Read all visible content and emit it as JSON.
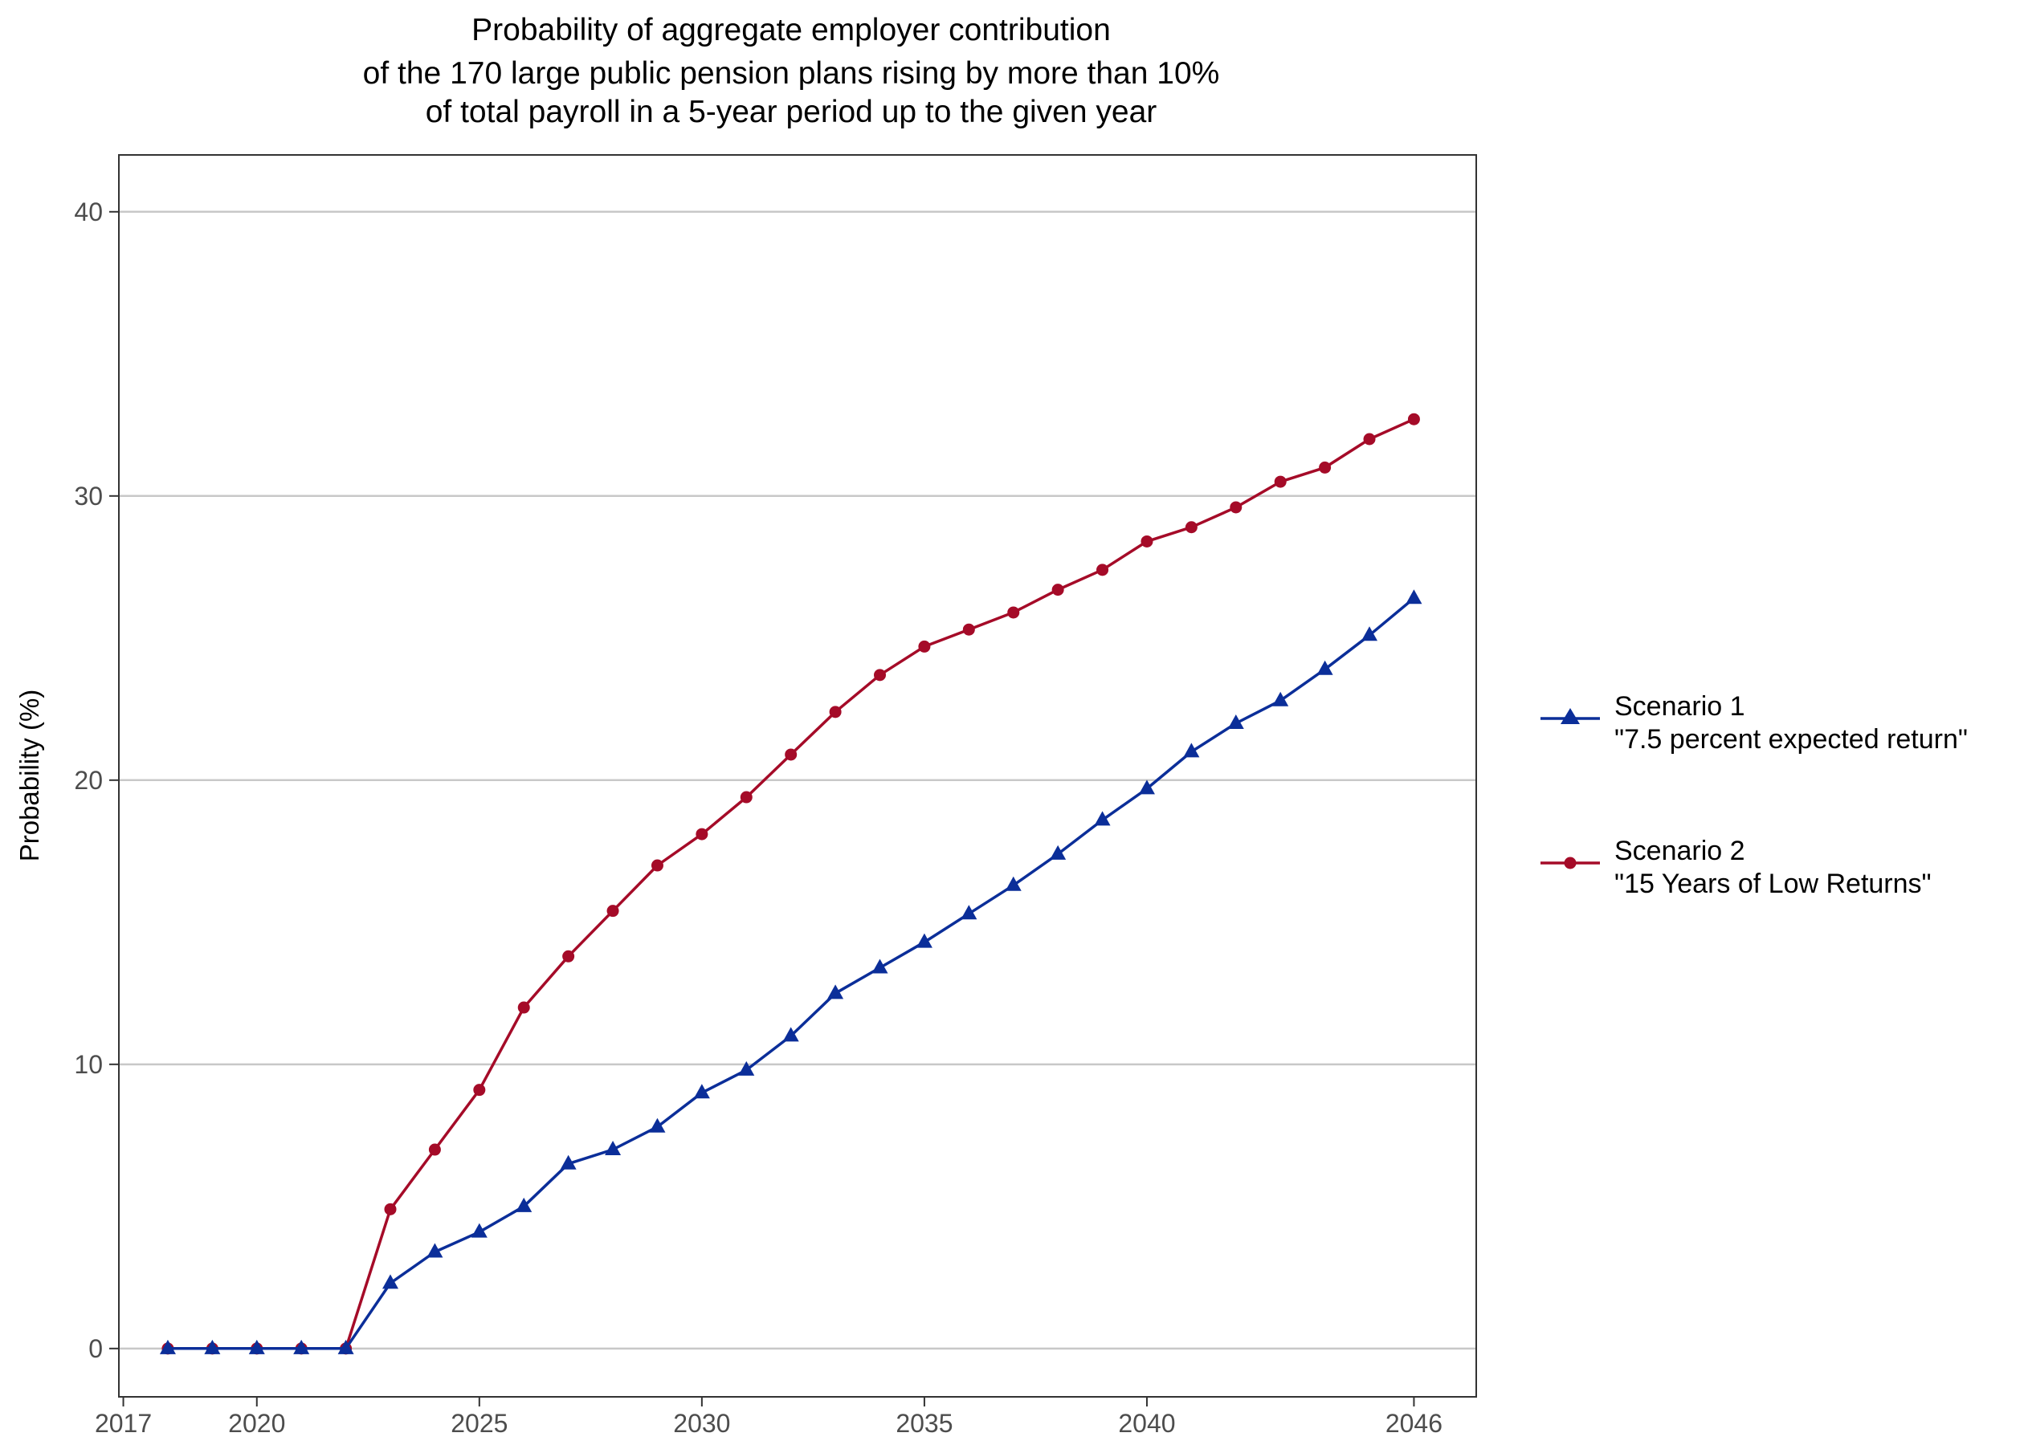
{
  "chart_data": {
    "type": "line",
    "title_lines": [
      "Probability of aggregate employer contribution",
      "of the 170 large public pension plans rising by more than 10%",
      "of total payroll in a 5-year period up to the given year"
    ],
    "xlabel": "",
    "ylabel": "Probability (%)",
    "x_ticks": [
      "2017",
      "2020",
      "2025",
      "2030",
      "2035",
      "2040",
      "2046"
    ],
    "y_ticks": [
      "0",
      "10",
      "20",
      "30",
      "40"
    ],
    "xlim": [
      2016.9,
      2047.4
    ],
    "ylim": [
      -1.7,
      42
    ],
    "grid": "horizontal major gridlines",
    "legend_position": "right",
    "x": [
      2018,
      2019,
      2020,
      2021,
      2022,
      2023,
      2024,
      2025,
      2026,
      2027,
      2028,
      2029,
      2030,
      2031,
      2032,
      2033,
      2034,
      2035,
      2036,
      2037,
      2038,
      2039,
      2040,
      2041,
      2042,
      2043,
      2044,
      2045,
      2046
    ],
    "series": [
      {
        "name_line1": "Scenario 1",
        "name_line2": "\"7.5 percent expected return\"",
        "color": "#0B2E99",
        "marker": "triangle",
        "values": [
          0,
          0,
          0,
          0,
          0,
          2.3,
          3.4,
          4.1,
          5.0,
          6.5,
          7.0,
          7.8,
          9.0,
          9.8,
          11.0,
          12.5,
          13.4,
          14.3,
          15.3,
          16.3,
          17.4,
          18.6,
          19.7,
          21.0,
          22.0,
          22.8,
          23.9,
          25.1,
          26.4
        ]
      },
      {
        "name_line1": "Scenario 2",
        "name_line2": "\"15 Years of Low Returns\"",
        "color": "#A50B28",
        "marker": "circle",
        "values": [
          0,
          0,
          0,
          0,
          0,
          4.9,
          7.0,
          9.1,
          12.0,
          13.8,
          15.4,
          17.0,
          18.1,
          19.4,
          20.9,
          22.4,
          23.7,
          24.7,
          25.3,
          25.9,
          26.7,
          27.4,
          28.4,
          28.9,
          29.6,
          30.5,
          31.0,
          32.0,
          32.7
        ]
      }
    ]
  }
}
